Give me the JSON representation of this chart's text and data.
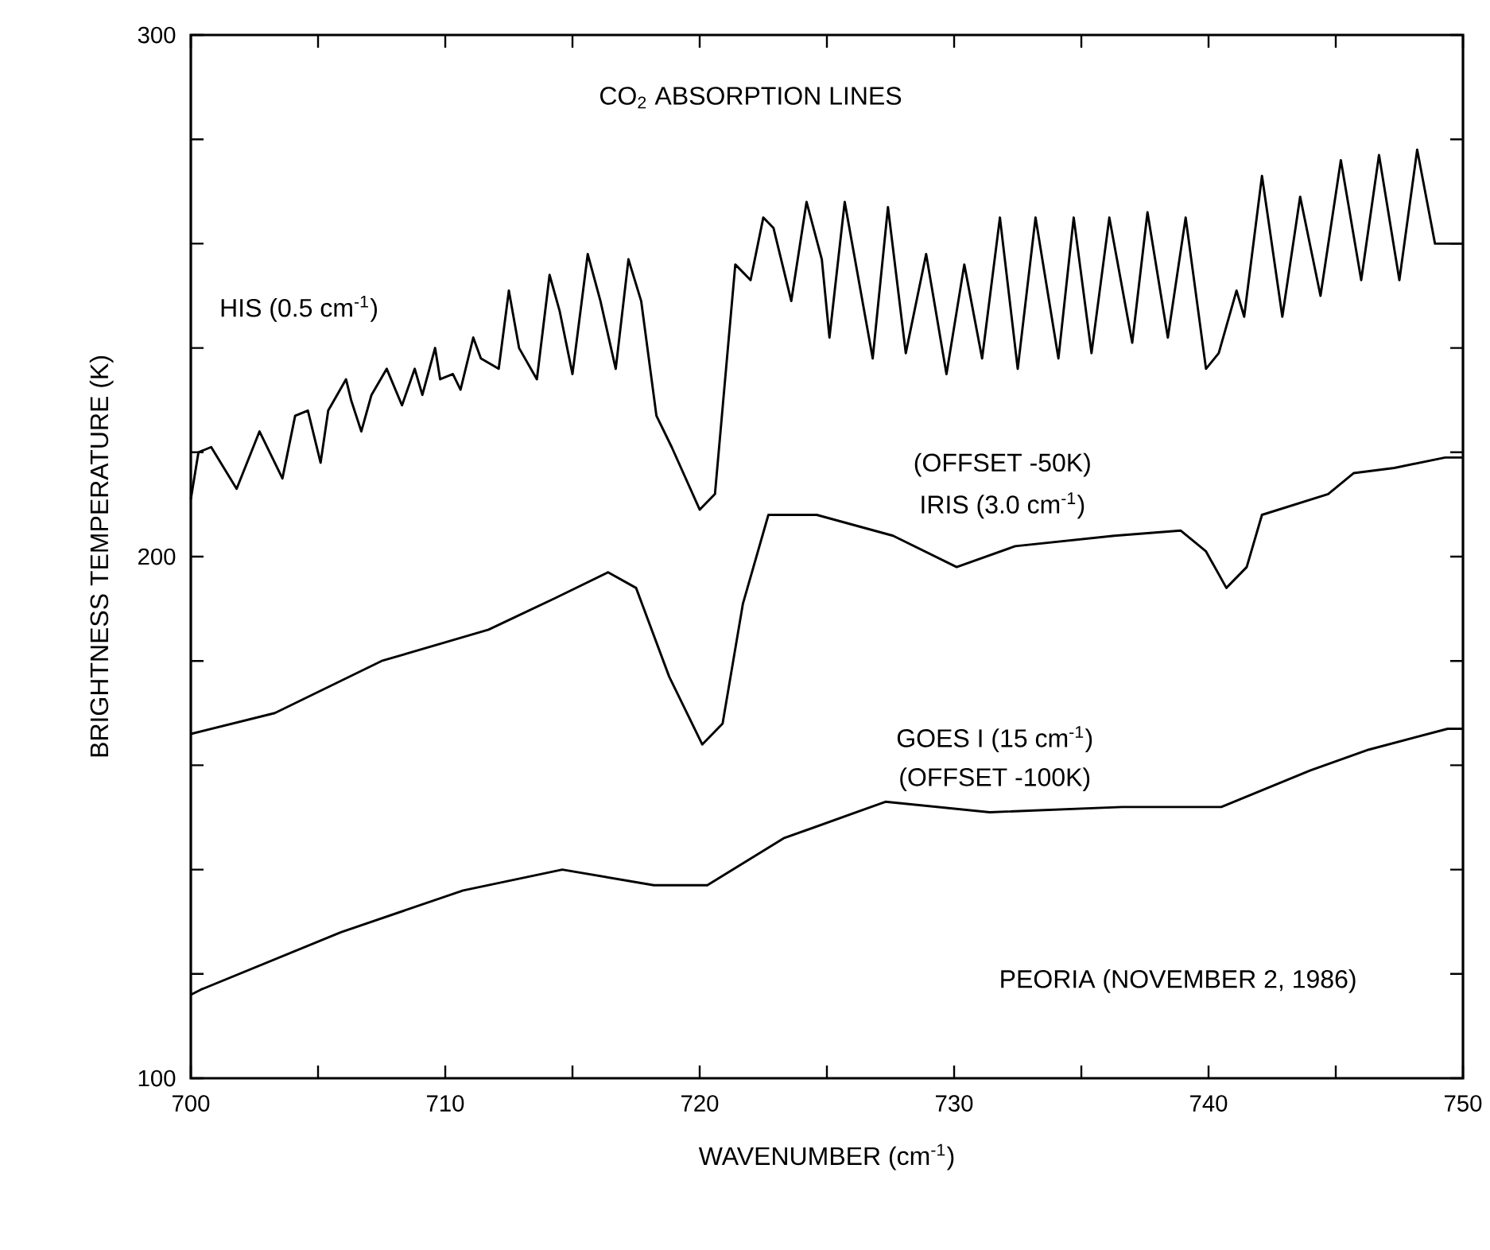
{
  "chart_data": {
    "type": "line",
    "title": "CO$_{2}$ ABSORPTION LINES",
    "xlabel": "WAVENUMBER (cm$^{-1}$)",
    "ylabel": "BRIGHTNESS TEMPERATURE (K)",
    "xlim": [
      700,
      750
    ],
    "ylim": [
      100,
      300
    ],
    "xticks": [
      700,
      {
        "value": 705,
        "label": null
      },
      710,
      {
        "value": 715,
        "label": null
      },
      720,
      {
        "value": 725,
        "label": null
      },
      730,
      {
        "value": 735,
        "label": null
      },
      740,
      {
        "value": 745,
        "label": null
      },
      750
    ],
    "yticks": [
      100,
      {
        "value": 120,
        "label": null
      },
      {
        "value": 140,
        "label": null
      },
      {
        "value": 160,
        "label": null
      },
      {
        "value": 180,
        "label": null
      },
      200,
      {
        "value": 220,
        "label": null
      },
      {
        "value": 240,
        "label": null
      },
      {
        "value": 260,
        "label": null
      },
      {
        "value": 280,
        "label": null
      },
      300
    ],
    "marker": "none",
    "line_style": "solid",
    "annotations": [
      "(OFFSET -50K)",
      "(OFFSET -100K)",
      "PEORIA (NOVEMBER 2, 1986)"
    ],
    "series": [
      {
        "name": "HIS (0.5 cm$^{-1}$)",
        "color": "#000000",
        "x": [
          700.0,
          700.3,
          700.8,
          701.8,
          702.7,
          703.6,
          704.1,
          704.6,
          705.1,
          705.4,
          706.1,
          706.3,
          706.7,
          707.1,
          707.7,
          708.3,
          708.8,
          709.1,
          709.6,
          709.8,
          710.3,
          710.6,
          711.1,
          711.4,
          712.1,
          712.5,
          712.9,
          713.6,
          714.1,
          714.5,
          715.0,
          715.6,
          716.1,
          716.7,
          717.2,
          717.7,
          718.3,
          718.9,
          720.0,
          720.6,
          721.4,
          722.0,
          722.5,
          722.9,
          723.6,
          724.2,
          724.8,
          725.1,
          725.7,
          726.8,
          727.4,
          728.1,
          728.9,
          729.7,
          730.4,
          731.1,
          731.8,
          732.5,
          733.2,
          734.1,
          734.7,
          735.4,
          736.1,
          737.0,
          737.6,
          738.4,
          739.1,
          739.9,
          740.4,
          741.1,
          741.4,
          742.1,
          742.9,
          743.6,
          744.4,
          745.2,
          746.0,
          746.7,
          747.5,
          748.2,
          748.9,
          750.0
        ],
        "values": [
          211,
          220,
          221,
          213,
          224,
          215,
          227,
          228,
          218,
          228,
          234,
          230,
          224,
          231,
          236,
          229,
          236,
          231,
          240,
          234,
          235,
          232,
          242,
          238,
          236,
          251,
          240,
          234,
          254,
          247,
          235,
          258,
          249,
          236,
          257,
          249,
          227,
          221,
          209,
          212,
          256,
          253,
          265,
          263,
          249,
          268,
          257,
          242,
          268,
          238,
          267,
          239,
          258,
          235,
          256,
          238,
          265,
          236,
          265,
          238,
          265,
          239,
          265,
          241,
          266,
          242,
          265,
          236,
          239,
          251,
          246,
          273,
          246,
          269,
          250,
          276,
          253,
          277,
          253,
          278,
          260,
          260
        ]
      },
      {
        "name": "IRIS (3.0 cm$^{-1}$)",
        "color": "#000000",
        "x": [
          700.0,
          703.3,
          707.5,
          711.7,
          714.3,
          716.4,
          717.5,
          718.8,
          720.1,
          720.9,
          721.7,
          722.7,
          724.6,
          727.6,
          730.1,
          732.4,
          736.3,
          738.9,
          739.9,
          740.7,
          741.5,
          742.1,
          743.4,
          744.7,
          745.7,
          747.3,
          749.3,
          750.0
        ],
        "values": [
          166,
          170,
          180,
          186,
          192,
          197,
          194,
          177,
          164,
          168,
          191,
          208,
          208,
          204,
          198,
          202,
          204,
          205,
          201,
          194,
          198,
          208,
          210,
          212,
          216,
          217,
          219,
          219
        ]
      },
      {
        "name": "GOES I (15 cm$^{-1}$)",
        "color": "#000000",
        "x": [
          700.0,
          700.4,
          705.9,
          710.7,
          714.6,
          718.2,
          720.3,
          723.3,
          727.3,
          731.4,
          736.6,
          740.5,
          744.0,
          746.3,
          749.4,
          750.0
        ],
        "values": [
          116,
          117,
          128,
          136,
          140,
          137,
          137,
          146,
          153,
          151,
          152,
          152,
          159,
          163,
          167,
          167
        ]
      }
    ]
  }
}
